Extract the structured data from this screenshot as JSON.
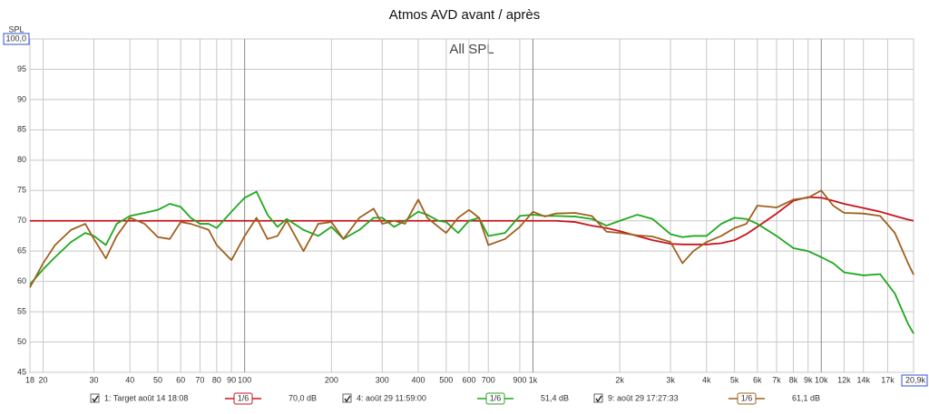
{
  "chart_data": {
    "type": "line",
    "title": "Atmos AVD avant / après",
    "subtitle": "All SPL",
    "y_label": "SPL",
    "log_x": true,
    "grid": true,
    "xlim": [
      18,
      20900
    ],
    "ylim": [
      45,
      100
    ],
    "xticks": [
      18,
      20,
      30,
      40,
      50,
      60,
      70,
      80,
      90,
      100,
      200,
      300,
      400,
      500,
      600,
      700,
      {
        "value": 900,
        "label": "900"
      },
      {
        "value": 1000,
        "label": "1k"
      },
      {
        "value": 2000,
        "label": "2k"
      },
      {
        "value": 3000,
        "label": "3k"
      },
      {
        "value": 4000,
        "label": "4k"
      },
      {
        "value": 5000,
        "label": "5k"
      },
      {
        "value": 6000,
        "label": "6k"
      },
      {
        "value": 7000,
        "label": "7k"
      },
      {
        "value": 8000,
        "label": "8k"
      },
      {
        "value": 9000,
        "label": "9k"
      },
      {
        "value": 10000,
        "label": "10k"
      },
      {
        "value": 12000,
        "label": "12k"
      },
      {
        "value": 14000,
        "label": "14k"
      },
      {
        "value": 17000,
        "label": "17k"
      },
      {
        "value": 20900,
        "label": "20,9k"
      }
    ],
    "yticks": [
      {
        "value": 100,
        "label": "100,0"
      },
      95,
      90,
      85,
      80,
      75,
      70,
      65,
      60,
      55,
      50,
      45
    ],
    "x": [
      18,
      20,
      22,
      25,
      28,
      30,
      33,
      36,
      40,
      45,
      50,
      55,
      60,
      65,
      70,
      75,
      80,
      90,
      100,
      110,
      120,
      130,
      140,
      160,
      180,
      200,
      220,
      250,
      280,
      300,
      330,
      360,
      400,
      430,
      470,
      500,
      550,
      600,
      650,
      700,
      800,
      900,
      1000,
      1100,
      1200,
      1400,
      1600,
      1800,
      2000,
      2300,
      2600,
      3000,
      3300,
      3600,
      4000,
      4500,
      5000,
      5500,
      6000,
      7000,
      8000,
      9000,
      10000,
      11000,
      12000,
      14000,
      16000,
      18000,
      20000,
      20900
    ],
    "series": [
      {
        "name": "1: Target août 14 18:08",
        "color": "#c8141e",
        "smoothing": "1/6",
        "level": "70,0 dB",
        "values": [
          70,
          70,
          70,
          70,
          70,
          70,
          70,
          70,
          70,
          70,
          70,
          70,
          70,
          70,
          70,
          70,
          70,
          70,
          70,
          70,
          70,
          70,
          70,
          70,
          70,
          70,
          70,
          70,
          70,
          70,
          70,
          70,
          70,
          70,
          70,
          70,
          70,
          70,
          70,
          70,
          70,
          70,
          70,
          70,
          70,
          69.8,
          69.2,
          68.8,
          68.3,
          67.5,
          66.8,
          66.2,
          66.1,
          66.1,
          66.1,
          66.3,
          66.8,
          67.8,
          69,
          71.2,
          73.3,
          73.9,
          73.8,
          73.3,
          72.8,
          72.1,
          71.5,
          70.8,
          70.2,
          70
        ]
      },
      {
        "name": "4: août 29 11:59:00",
        "color": "#1fa81f",
        "smoothing": "1/6",
        "level": "51,4 dB",
        "values": [
          59.5,
          62,
          64,
          66.5,
          68,
          67.5,
          66,
          69.5,
          70.8,
          71.3,
          71.8,
          72.8,
          72.3,
          70.5,
          69.5,
          69.5,
          68.8,
          71.5,
          73.8,
          74.8,
          71,
          69,
          70.3,
          68.5,
          67.5,
          69,
          67,
          68.5,
          70.5,
          70.5,
          69,
          70,
          71.5,
          71,
          70,
          69.8,
          68,
          70,
          70.5,
          67.5,
          68,
          70.8,
          71,
          70.8,
          70.8,
          70.7,
          70.3,
          69.2,
          70,
          71,
          70.3,
          67.8,
          67.3,
          67.5,
          67.5,
          69.5,
          70.5,
          70.3,
          69.5,
          67.5,
          65.5,
          65,
          64,
          63,
          61.5,
          61,
          61.2,
          58,
          53,
          51.4
        ]
      },
      {
        "name": "9: août 29 17:27:33",
        "color": "#a0601e",
        "smoothing": "1/6",
        "level": "61,1 dB",
        "values": [
          59,
          63,
          66,
          68.5,
          69.5,
          67,
          63.8,
          67.5,
          70.5,
          69.5,
          67.3,
          67,
          69.8,
          69.5,
          69,
          68.5,
          66,
          63.5,
          67.5,
          70.5,
          67,
          67.5,
          70,
          65,
          69.5,
          69.8,
          67,
          70.5,
          72,
          69.5,
          70,
          69.5,
          73.5,
          70.5,
          69,
          68,
          70.5,
          71.8,
          70.5,
          66,
          67,
          69,
          71.5,
          70.7,
          71.2,
          71.3,
          70.8,
          68.2,
          68,
          67.6,
          67.4,
          66.5,
          63,
          65,
          66.5,
          67.5,
          68.8,
          69.5,
          72.5,
          72.2,
          73.5,
          73.8,
          75,
          72.5,
          71.3,
          71.2,
          70.8,
          68,
          63,
          61.1
        ]
      }
    ]
  }
}
